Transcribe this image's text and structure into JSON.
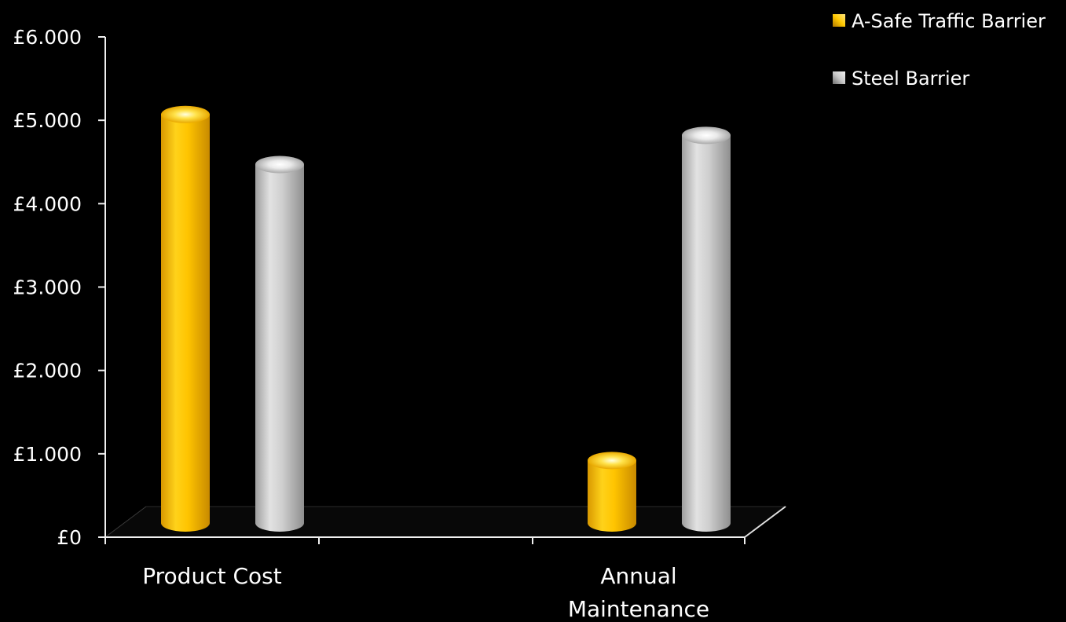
{
  "chart_data": {
    "type": "bar",
    "categories": [
      "Product Cost",
      "Annual Maintenance"
    ],
    "category_lines": [
      [
        "Product Cost"
      ],
      [
        "Annual",
        "Maintenance"
      ]
    ],
    "series": [
      {
        "name": "A-Safe Traffic Barrier",
        "values": [
          4900,
          750
        ],
        "color": "#FFC800"
      },
      {
        "name": "Steel Barrier",
        "values": [
          4300,
          4650
        ],
        "color": "#C8C8C8"
      }
    ],
    "y_ticks": [
      {
        "value": 0,
        "label": "£0"
      },
      {
        "value": 1000,
        "label": "£1.000"
      },
      {
        "value": 2000,
        "label": "£2.000"
      },
      {
        "value": 3000,
        "label": "£3.000"
      },
      {
        "value": 4000,
        "label": "£4.000"
      },
      {
        "value": 5000,
        "label": "£5.000"
      },
      {
        "value": 6000,
        "label": "£6.000"
      }
    ],
    "ylim": [
      0,
      6000
    ],
    "grid": false,
    "legend_position": "top-right",
    "style": "3d-cylinder"
  }
}
